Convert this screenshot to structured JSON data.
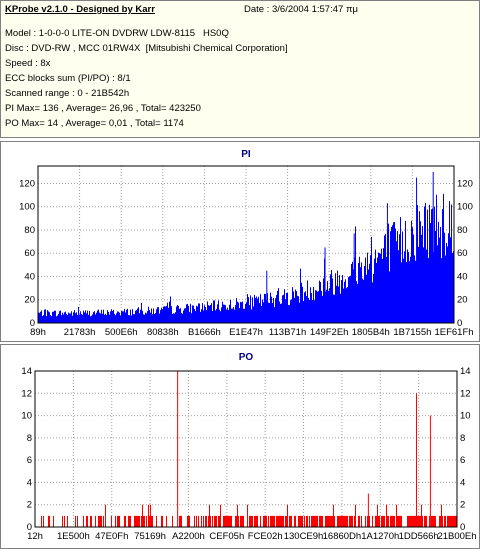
{
  "header": {
    "title": "KProbe v2.1.0 - Designed by Karr",
    "date": "Date : 3/6/2004 1:57:47 πμ",
    "lines": [
      "Model : 1-0-0-0 LITE-ON DVDRW LDW-8115   HS0Q",
      "Disc : DVD-RW , MCC 01RW4X  [Mitsubishi Chemical Corporation]",
      "Speed : 8x",
      "ECC blocks sum (PI/PO) : 8/1",
      "Scanned range : 0 - 21B542h",
      "PI Max= 136 , Average= 26,96 , Total= 423250",
      "PO Max= 14 , Average= 0,01 , Total= 1174"
    ]
  },
  "chart_data": [
    {
      "type": "bar",
      "title": "PI",
      "x_tick_labels": [
        "89h",
        "21783h",
        "500E6h",
        "80838h",
        "B1666h",
        "E1E47h",
        "113B71h",
        "149F2Eh",
        "1805B4h",
        "1B7155h",
        "1EF61Fh"
      ],
      "ylim": [
        0,
        135
      ],
      "y_ticks": [
        0,
        20,
        40,
        60,
        80,
        100,
        120
      ],
      "max": 136,
      "average": 26.96,
      "envelope_x": [
        0,
        0.1,
        0.2,
        0.3,
        0.4,
        0.5,
        0.6,
        0.7,
        0.8,
        0.9,
        0.95,
        1.0
      ],
      "envelope_y": [
        10,
        10,
        11,
        13,
        16,
        20,
        27,
        40,
        62,
        90,
        102,
        100
      ],
      "spikes": [
        {
          "x": 0.55,
          "y": 45
        },
        {
          "x": 0.69,
          "y": 65
        },
        {
          "x": 0.76,
          "y": 77
        },
        {
          "x": 0.84,
          "y": 103
        },
        {
          "x": 0.91,
          "y": 125
        },
        {
          "x": 0.95,
          "y": 130
        }
      ],
      "color": "#0000ff",
      "grid": true
    },
    {
      "type": "bar",
      "title": "PO",
      "x_tick_labels": [
        "12h",
        "1E500h",
        "47E0Fh",
        "75169h",
        "A2200h",
        "CEF05h",
        "FCE02h",
        "130CE9h",
        "16860Dh",
        "1A1270h",
        "1DD566h",
        "21B00Eh"
      ],
      "ylim": [
        0,
        14
      ],
      "y_ticks": [
        0,
        2,
        4,
        6,
        8,
        10,
        12,
        14
      ],
      "max": 14,
      "average": 0.01,
      "spikes": [
        {
          "x": 0.338,
          "y": 14
        },
        {
          "x": 0.904,
          "y": 12
        },
        {
          "x": 0.937,
          "y": 10
        },
        {
          "x": 0.79,
          "y": 3
        }
      ],
      "color": "#ff0000",
      "grid": true
    }
  ]
}
